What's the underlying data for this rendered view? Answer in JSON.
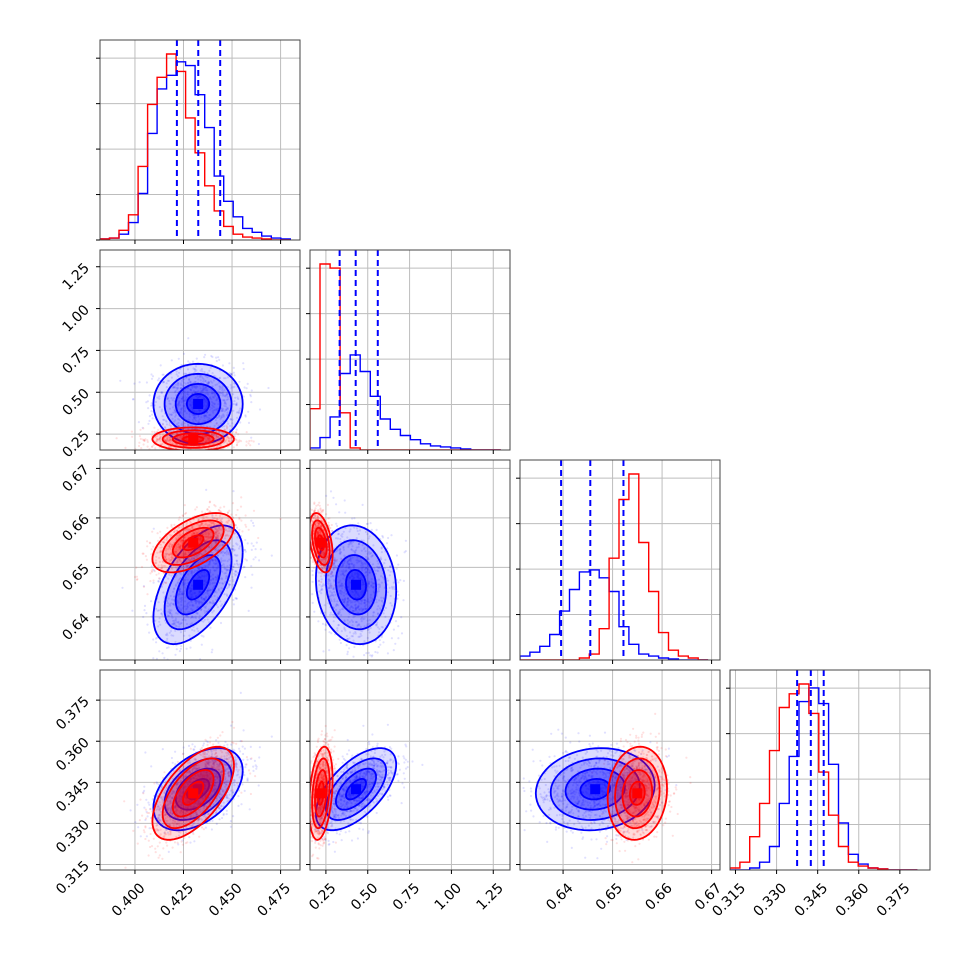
{
  "chart_data": {
    "type": "corner",
    "params": [
      {
        "ticks": [
          0.4,
          0.425,
          0.45,
          0.475
        ],
        "tick_labels": [
          "0.400",
          "0.425",
          "0.450",
          "0.475"
        ],
        "range": [
          0.382,
          0.485
        ]
      },
      {
        "ticks": [
          0.25,
          0.5,
          0.75,
          1.0,
          1.25
        ],
        "tick_labels": [
          "0.25",
          "0.50",
          "0.75",
          "1.00",
          "1.25"
        ],
        "range": [
          0.155,
          1.35
        ]
      },
      {
        "ticks": [
          0.64,
          0.65,
          0.66,
          0.67
        ],
        "tick_labels": [
          "0.64",
          "0.65",
          "0.66",
          "0.67"
        ],
        "range": [
          0.6313,
          0.6717
        ]
      },
      {
        "ticks": [
          0.315,
          0.33,
          0.345,
          0.36,
          0.375
        ],
        "tick_labels": [
          "0.315",
          "0.330",
          "0.345",
          "0.360",
          "0.375"
        ],
        "range": [
          0.313,
          0.386
        ]
      }
    ],
    "series": [
      {
        "color": "#0000ff",
        "mean": [
          0.4325,
          0.43,
          0.6465,
          0.3425
        ],
        "sd": [
          0.0115,
          0.12,
          0.006,
          0.0075
        ],
        "corr": [
          [
            1,
            0,
            0.55,
            0.45
          ],
          [
            0,
            1,
            -0.1,
            0.6
          ],
          [
            0.55,
            -0.1,
            1,
            0.1
          ],
          [
            0.45,
            0.6,
            0.1,
            1
          ]
        ]
      },
      {
        "color": "#ff0000",
        "mean": [
          0.43,
          0.22,
          0.655,
          0.341
        ],
        "sd": [
          0.0105,
          0.035,
          0.003,
          0.0085
        ],
        "corr": [
          [
            1,
            0,
            0.55,
            0.6
          ],
          [
            0,
            1,
            -0.4,
            0.3
          ],
          [
            0.55,
            -0.4,
            1,
            0.1
          ],
          [
            0.6,
            0.3,
            0.1,
            1
          ]
        ]
      }
    ],
    "histograms": [
      {
        "bins": [
          0.382,
          0.3869,
          0.3918,
          0.3967,
          0.4016,
          0.4065,
          0.4114,
          0.4163,
          0.4212,
          0.4261,
          0.431,
          0.4359,
          0.4408,
          0.4457,
          0.4506,
          0.4555,
          0.4604,
          0.4653,
          0.4702,
          0.4751,
          0.48
        ],
        "counts": [
          {
            "color": "#0000ff",
            "values": [
              0.005,
              0.01,
              0.03,
              0.09,
              0.24,
              0.55,
              0.78,
              0.85,
              0.92,
              0.9,
              0.75,
              0.58,
              0.33,
              0.2,
              0.12,
              0.06,
              0.04,
              0.02,
              0.01,
              0.005
            ]
          },
          {
            "color": "#ff0000",
            "values": [
              0.005,
              0.01,
              0.05,
              0.13,
              0.38,
              0.7,
              0.84,
              0.96,
              0.87,
              0.63,
              0.45,
              0.28,
              0.15,
              0.07,
              0.03,
              0.015,
              0.01,
              0.005,
              0.0,
              0.0
            ]
          }
        ],
        "quantiles": [
          0.4216,
          0.4326,
          0.4439
        ]
      },
      {
        "bins": [
          0.155,
          0.215,
          0.275,
          0.335,
          0.395,
          0.455,
          0.515,
          0.575,
          0.635,
          0.695,
          0.755,
          0.815,
          0.875,
          0.935,
          0.995,
          1.055,
          1.115,
          1.175,
          1.235,
          1.295
        ],
        "counts": [
          {
            "color": "#0000ff",
            "values": [
              0.01,
              0.06,
              0.16,
              0.37,
              0.46,
              0.38,
              0.26,
              0.15,
              0.1,
              0.07,
              0.05,
              0.03,
              0.02,
              0.015,
              0.01,
              0.005,
              0.0,
              0.0,
              0.0
            ]
          },
          {
            "color": "#ff0000",
            "values": [
              0.2,
              0.9,
              0.88,
              0.18,
              0.01,
              0.0,
              0.0,
              0.0,
              0.0,
              0.0,
              0.0,
              0.0,
              0.0,
              0.0,
              0.0,
              0.0,
              0.0,
              0.0,
              0.0
            ]
          }
        ],
        "quantiles": [
          0.332,
          0.428,
          0.56
        ]
      },
      {
        "bins": [
          0.6313,
          0.6333,
          0.6353,
          0.6373,
          0.6393,
          0.6413,
          0.6433,
          0.6453,
          0.6473,
          0.6493,
          0.6513,
          0.6533,
          0.6553,
          0.6573,
          0.6593,
          0.6613,
          0.6633,
          0.6653,
          0.6673,
          0.6693
        ],
        "counts": [
          {
            "color": "#0000ff",
            "values": [
              0.02,
              0.04,
              0.07,
              0.13,
              0.25,
              0.36,
              0.45,
              0.46,
              0.42,
              0.35,
              0.17,
              0.08,
              0.03,
              0.02,
              0.01,
              0.005,
              0.0,
              0.0,
              0.0
            ]
          },
          {
            "color": "#ff0000",
            "values": [
              0.0,
              0.0,
              0.0,
              0.0,
              0.0,
              0.0,
              0.01,
              0.03,
              0.16,
              0.52,
              0.82,
              0.95,
              0.6,
              0.35,
              0.14,
              0.05,
              0.02,
              0.01,
              0.0
            ]
          }
        ],
        "quantiles": [
          0.6396,
          0.6455,
          0.6522
        ]
      },
      {
        "bins": [
          0.313,
          0.3166,
          0.3202,
          0.3238,
          0.3274,
          0.331,
          0.3346,
          0.3382,
          0.3418,
          0.3454,
          0.349,
          0.3526,
          0.3562,
          0.3598,
          0.3634,
          0.367,
          0.3706,
          0.3742,
          0.3778,
          0.3814
        ],
        "counts": [
          {
            "color": "#0000ff",
            "values": [
              0.0,
              0.0,
              0.01,
              0.04,
              0.12,
              0.34,
              0.58,
              0.86,
              0.93,
              0.85,
              0.54,
              0.24,
              0.08,
              0.03,
              0.01,
              0.005,
              0.0,
              0.0,
              0.0
            ]
          },
          {
            "color": "#ff0000",
            "values": [
              0.01,
              0.04,
              0.17,
              0.34,
              0.61,
              0.83,
              0.9,
              0.95,
              0.8,
              0.5,
              0.28,
              0.12,
              0.04,
              0.02,
              0.01,
              0.005,
              0.0,
              0.0,
              0.0
            ]
          }
        ],
        "quantiles": [
          0.3375,
          0.3425,
          0.3472
        ]
      }
    ],
    "quantile_line_color": "#0000ff",
    "grid": true
  }
}
